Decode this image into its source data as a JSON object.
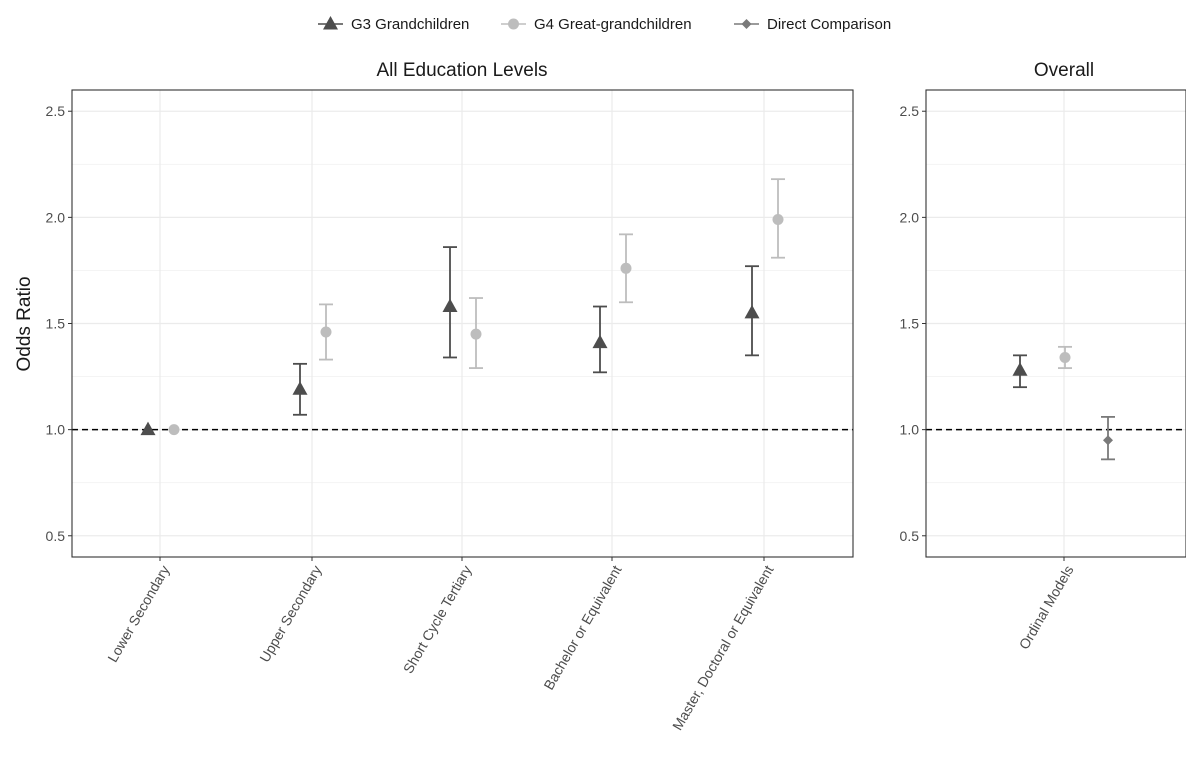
{
  "chart_data": {
    "type": "scatter",
    "subtype": "point-with-error-bars",
    "ylabel": "Odds Ratio",
    "ylim": [
      0.4,
      2.6
    ],
    "yticks": [
      0.5,
      1.0,
      1.5,
      2.0,
      2.5
    ],
    "ytick_labels": [
      "0.5",
      "1.0",
      "1.5",
      "2.0",
      "2.5"
    ],
    "reference_line": {
      "y": 1.0,
      "style": "dashed"
    },
    "grid": true,
    "legend": {
      "placement": "top",
      "entries": [
        {
          "name": "G3 Grandchildren",
          "marker": "triangle",
          "color": "#4d4d4d"
        },
        {
          "name": "G4 Great-grandchildren",
          "marker": "circle",
          "color": "#bdbdbd"
        },
        {
          "name": "Direct Comparison",
          "marker": "diamond",
          "color": "#7a7a7a"
        }
      ]
    },
    "panels": [
      {
        "title": "All Education Levels",
        "categories": [
          "Lower Secondary",
          "Upper Secondary",
          "Short Cycle Tertiary",
          "Bachelor or Equivalent",
          "Master, Doctoral or Equivalent"
        ],
        "series": [
          {
            "name": "G3 Grandchildren",
            "values": [
              1.0,
              1.19,
              1.58,
              1.41,
              1.55
            ],
            "lower": [
              null,
              1.07,
              1.34,
              1.27,
              1.35
            ],
            "upper": [
              null,
              1.31,
              1.86,
              1.58,
              1.77
            ]
          },
          {
            "name": "G4 Great-grandchildren",
            "values": [
              1.0,
              1.46,
              1.45,
              1.76,
              1.99
            ],
            "lower": [
              null,
              1.33,
              1.29,
              1.6,
              1.81
            ],
            "upper": [
              null,
              1.59,
              1.62,
              1.92,
              2.18
            ]
          }
        ]
      },
      {
        "title": "Overall",
        "categories": [
          "Ordinal Models"
        ],
        "series": [
          {
            "name": "G3 Grandchildren",
            "values": [
              1.28
            ],
            "lower": [
              1.2
            ],
            "upper": [
              1.35
            ]
          },
          {
            "name": "G4 Great-grandchildren",
            "values": [
              1.34
            ],
            "lower": [
              1.29
            ],
            "upper": [
              1.39
            ]
          },
          {
            "name": "Direct Comparison",
            "values": [
              0.95
            ],
            "lower": [
              0.86
            ],
            "upper": [
              1.06
            ]
          }
        ]
      }
    ]
  }
}
